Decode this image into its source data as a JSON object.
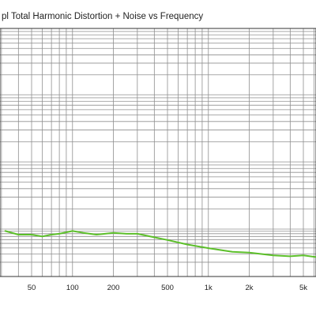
{
  "chart_data": {
    "type": "line",
    "title": "pl Total Harmonic Distortion + Noise vs Frequency",
    "xlabel": "",
    "ylabel": "",
    "x_scale": "log",
    "xlim": [
      32,
      7000
    ],
    "x_ticks": [
      {
        "value": 50,
        "label": "50"
      },
      {
        "value": 100,
        "label": "100"
      },
      {
        "value": 200,
        "label": "200"
      },
      {
        "value": 500,
        "label": "500"
      },
      {
        "value": 1000,
        "label": "1k"
      },
      {
        "value": 2000,
        "label": "2k"
      },
      {
        "value": 5000,
        "label": "5k"
      }
    ],
    "grid": true,
    "series": [
      {
        "color": "#5cbf2a",
        "x": [
          32,
          40,
          50,
          60,
          70,
          80,
          100,
          120,
          150,
          200,
          250,
          300,
          400,
          500,
          700,
          1000,
          1500,
          2000,
          3000,
          4000,
          5000,
          7000
        ],
        "y": [
          0.27,
          0.262,
          0.262,
          0.258,
          0.262,
          0.264,
          0.27,
          0.266,
          0.262,
          0.266,
          0.264,
          0.264,
          0.256,
          0.25,
          0.24,
          0.232,
          0.224,
          0.222,
          0.216,
          0.214,
          0.216,
          0.21
        ]
      }
    ]
  }
}
